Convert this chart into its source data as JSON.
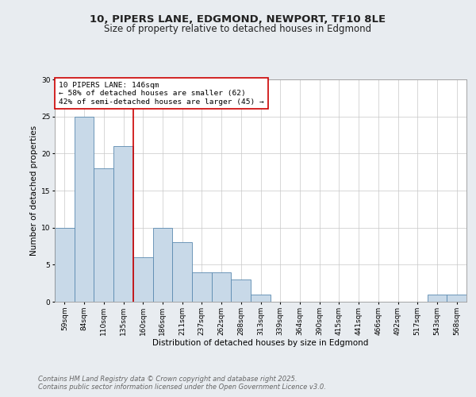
{
  "title1": "10, PIPERS LANE, EDGMOND, NEWPORT, TF10 8LE",
  "title2": "Size of property relative to detached houses in Edgmond",
  "xlabel": "Distribution of detached houses by size in Edgmond",
  "ylabel": "Number of detached properties",
  "categories": [
    "59sqm",
    "84sqm",
    "110sqm",
    "135sqm",
    "160sqm",
    "186sqm",
    "211sqm",
    "237sqm",
    "262sqm",
    "288sqm",
    "313sqm",
    "339sqm",
    "364sqm",
    "390sqm",
    "415sqm",
    "441sqm",
    "466sqm",
    "492sqm",
    "517sqm",
    "543sqm",
    "568sqm"
  ],
  "values": [
    10,
    25,
    18,
    21,
    6,
    10,
    8,
    4,
    4,
    3,
    1,
    0,
    0,
    0,
    0,
    0,
    0,
    0,
    0,
    1,
    1
  ],
  "bar_color": "#c8d9e8",
  "bar_edge_color": "#5a8ab0",
  "red_line_x": 3.5,
  "annotation_text": "10 PIPERS LANE: 146sqm\n← 58% of detached houses are smaller (62)\n42% of semi-detached houses are larger (45) →",
  "annotation_box_color": "#ffffff",
  "annotation_border_color": "#cc0000",
  "annotation_text_color": "#000000",
  "red_line_color": "#cc0000",
  "ylim": [
    0,
    30
  ],
  "yticks": [
    0,
    5,
    10,
    15,
    20,
    25,
    30
  ],
  "footnote1": "Contains HM Land Registry data © Crown copyright and database right 2025.",
  "footnote2": "Contains public sector information licensed under the Open Government Licence v3.0.",
  "background_color": "#e8ecf0",
  "plot_background": "#ffffff",
  "grid_color": "#c8c8c8",
  "title_fontsize": 9.5,
  "subtitle_fontsize": 8.5,
  "axis_label_fontsize": 7.5,
  "tick_fontsize": 6.5,
  "annotation_fontsize": 6.8,
  "footnote_fontsize": 6.0
}
